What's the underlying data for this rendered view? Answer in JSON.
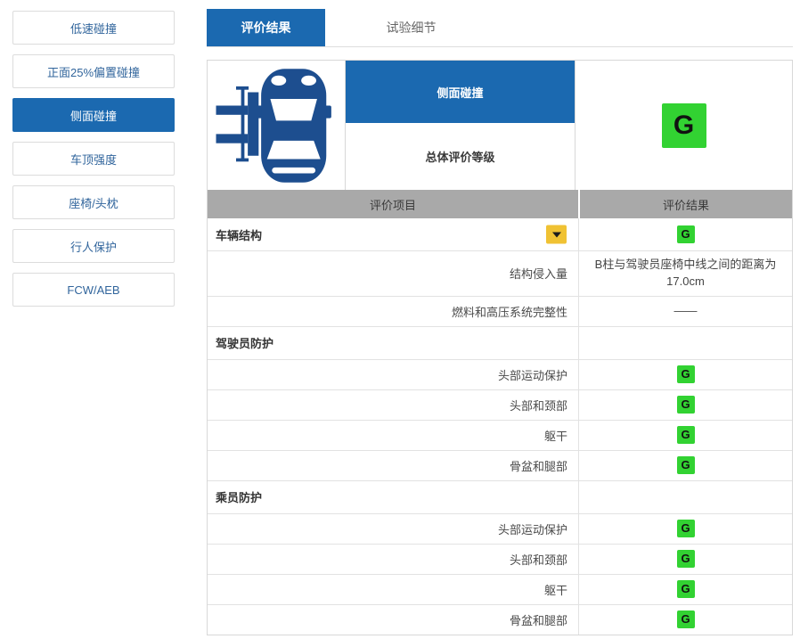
{
  "sidebar": {
    "items": [
      {
        "label": "低速碰撞",
        "active": false
      },
      {
        "label": "正面25%偏置碰撞",
        "active": false
      },
      {
        "label": "侧面碰撞",
        "active": true
      },
      {
        "label": "车顶强度",
        "active": false
      },
      {
        "label": "座椅/头枕",
        "active": false
      },
      {
        "label": "行人保护",
        "active": false
      },
      {
        "label": "FCW/AEB",
        "active": false
      }
    ]
  },
  "tabs": [
    {
      "label": "评价结果",
      "active": true
    },
    {
      "label": "试验细节",
      "active": false
    }
  ],
  "summary": {
    "car_icon": "side-impact-car-top-view-icon",
    "test_name": "侧面碰撞",
    "overall_label": "总体评价等级",
    "overall_grade": "G"
  },
  "table": {
    "headers": [
      "评价项目",
      "评价结果"
    ],
    "rows": [
      {
        "type": "section",
        "label": "车辆结构",
        "grade": "G",
        "has_dropdown": true
      },
      {
        "type": "item",
        "label": "结构侵入量",
        "result_text": "B柱与驾驶员座椅中线之间的距离为17.0cm"
      },
      {
        "type": "item",
        "label": "燃料和高压系统完整性",
        "result_text": "——"
      },
      {
        "type": "section",
        "label": "驾驶员防护"
      },
      {
        "type": "item",
        "label": "头部运动保护",
        "grade": "G"
      },
      {
        "type": "item",
        "label": "头部和颈部",
        "grade": "G"
      },
      {
        "type": "item",
        "label": "躯干",
        "grade": "G"
      },
      {
        "type": "item",
        "label": "骨盆和腿部",
        "grade": "G"
      },
      {
        "type": "section",
        "label": "乘员防护"
      },
      {
        "type": "item",
        "label": "头部运动保护",
        "grade": "G"
      },
      {
        "type": "item",
        "label": "头部和颈部",
        "grade": "G"
      },
      {
        "type": "item",
        "label": "躯干",
        "grade": "G"
      },
      {
        "type": "item",
        "label": "骨盆和腿部",
        "grade": "G"
      }
    ]
  },
  "colors": {
    "accent_blue": "#1b69b0",
    "car_icon_navy": "#1d4e8f",
    "grade_green": "#32d232",
    "dropdown_yellow": "#f0c233",
    "table_header_gray": "#a9a9a9"
  }
}
